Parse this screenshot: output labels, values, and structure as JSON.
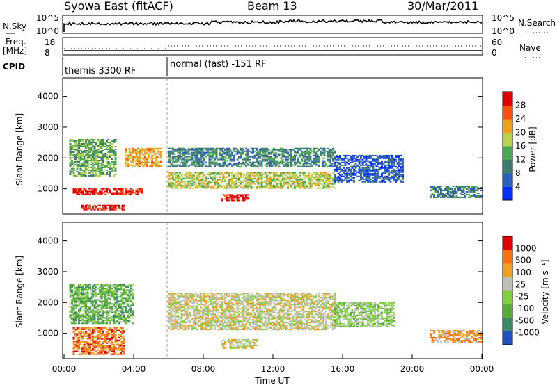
{
  "header": {
    "station": "Syowa East (fitACF)",
    "beam": "Beam 13",
    "date": "30/Mar/2011"
  },
  "top_panels": {
    "nsky_label": "N.Sky",
    "nsky_ticks": [
      "10^5",
      "10^0"
    ],
    "nsearch_label": "N.Search",
    "nsearch_ticks": [
      "10^5",
      "10^0"
    ],
    "freq_label_1": "Freq.",
    "freq_label_2": "[MHz]",
    "freq_ticks": [
      "18",
      "8"
    ],
    "nave_label": "Nave",
    "nave_ticks": [
      "60",
      "0"
    ],
    "cpid_label": "CPID",
    "cpid_segments": [
      {
        "label": "themis 3300 RF",
        "start_hour": 0,
        "end_hour": 6
      },
      {
        "label": "normal (fast) -151 RF",
        "start_hour": 6,
        "end_hour": 24
      }
    ]
  },
  "chart_data": [
    {
      "type": "heatmap",
      "panel": "power",
      "ylabel": "Slant Range [km]",
      "colorbar_label": "Power [dB]",
      "x_range_hours": [
        0,
        24
      ],
      "ylim_km": [
        180,
        4600
      ],
      "y_ticks": [
        "4000",
        "3000",
        "2000",
        "1000"
      ],
      "colorbar_ticks": [
        "28",
        "24",
        "20",
        "16",
        "12",
        "8",
        "4"
      ],
      "colorbar_colors": [
        "#0030ff",
        "#2b5fbf",
        "#3d7a6e",
        "#4aa64f",
        "#b8d24a",
        "#f0a01a",
        "#ff5010",
        "#e00000"
      ],
      "echo_regions": [
        {
          "t0": 0.5,
          "t1": 4.5,
          "r0": 800,
          "r1": 1000,
          "level": 7
        },
        {
          "t0": 1.0,
          "t1": 3.5,
          "r0": 300,
          "r1": 450,
          "level": 7
        },
        {
          "t0": 0.3,
          "t1": 3.0,
          "r0": 1400,
          "r1": 2600,
          "level": 3
        },
        {
          "t0": 3.5,
          "t1": 5.5,
          "r0": 1700,
          "r1": 2300,
          "level": 5
        },
        {
          "t0": 6.0,
          "t1": 15.5,
          "r0": 1700,
          "r1": 2300,
          "level": 2
        },
        {
          "t0": 6.0,
          "t1": 15.5,
          "r0": 1000,
          "r1": 1500,
          "level": 4
        },
        {
          "t0": 9.0,
          "t1": 10.5,
          "r0": 600,
          "r1": 800,
          "level": 7
        },
        {
          "t0": 15.5,
          "t1": 19.5,
          "r0": 1200,
          "r1": 2100,
          "level": 1
        },
        {
          "t0": 21.0,
          "t1": 24.0,
          "r0": 700,
          "r1": 1100,
          "level": 2
        }
      ]
    },
    {
      "type": "heatmap",
      "panel": "velocity",
      "ylabel": "Slant Range [km]",
      "colorbar_label": "Velocity [m s⁻¹]",
      "x_range_hours": [
        0,
        24
      ],
      "ylim_km": [
        180,
        4600
      ],
      "y_ticks": [
        "4000",
        "3000",
        "2000",
        "1000"
      ],
      "x_ticks": [
        "00:00",
        "04:00",
        "08:00",
        "12:00",
        "16:00",
        "20:00",
        "00:00"
      ],
      "xlabel": "Time UT",
      "colorbar_ticks": [
        "1000",
        "500",
        "100",
        "25",
        "-25",
        "-100",
        "-500",
        "-1000"
      ],
      "colorbar_colors": [
        "#2050c0",
        "#3a8a6a",
        "#5aaa3a",
        "#80d040",
        "#c0c0b8",
        "#f0a020",
        "#ff7010",
        "#e00000"
      ],
      "echo_regions": [
        {
          "t0": 6.0,
          "t1": 15.5,
          "r0": 1100,
          "r1": 2300,
          "level": 4
        },
        {
          "t0": 9.0,
          "t1": 11.0,
          "r0": 500,
          "r1": 800,
          "level": 4
        },
        {
          "t0": 0.5,
          "t1": 3.5,
          "r0": 300,
          "r1": 1200,
          "level": 6
        },
        {
          "t0": 0.3,
          "t1": 4.0,
          "r0": 1300,
          "r1": 2600,
          "level": 2
        },
        {
          "t0": 15.5,
          "t1": 19.0,
          "r0": 1200,
          "r1": 2000,
          "level": 3
        },
        {
          "t0": 21.0,
          "t1": 24.0,
          "r0": 700,
          "r1": 1100,
          "level": 5
        }
      ]
    }
  ]
}
